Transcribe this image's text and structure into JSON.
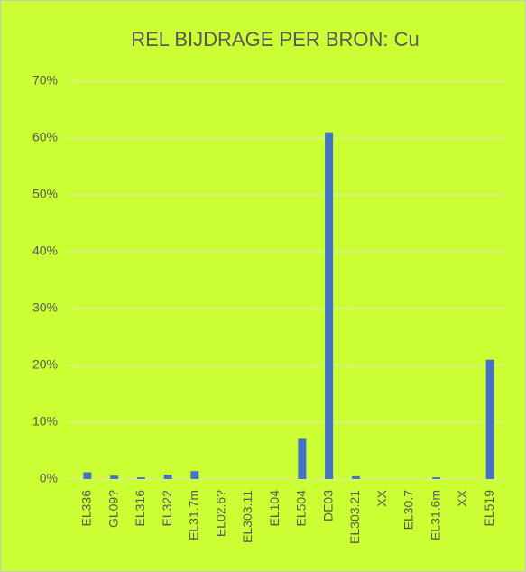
{
  "chart_data": {
    "type": "bar",
    "title": "REL BIJDRAGE PER BRON: Cu",
    "categories": [
      "EL336",
      "GL09?",
      "EL316",
      "EL322",
      "EL31.7m",
      "EL02.6?",
      "EL303.11",
      "EL104",
      "EL504",
      "DE03",
      "EL303.21",
      "XX",
      "EL30.7",
      "EL31.6m",
      "XX",
      "EL519"
    ],
    "values": [
      1.2,
      0.6,
      0.3,
      0.8,
      1.4,
      0,
      0,
      0,
      7.1,
      61,
      0.5,
      0,
      0,
      0.3,
      0,
      21
    ],
    "color": "#4472c4",
    "ylim": [
      0,
      70
    ],
    "yticks": [
      {
        "value": 0,
        "label": "0%"
      },
      {
        "value": 10,
        "label": "10%"
      },
      {
        "value": 20,
        "label": "20%"
      },
      {
        "value": 30,
        "label": "30%"
      },
      {
        "value": 40,
        "label": "40%"
      },
      {
        "value": 50,
        "label": "50%"
      },
      {
        "value": 60,
        "label": "60%"
      },
      {
        "value": 70,
        "label": "70%"
      }
    ],
    "grid": true
  }
}
